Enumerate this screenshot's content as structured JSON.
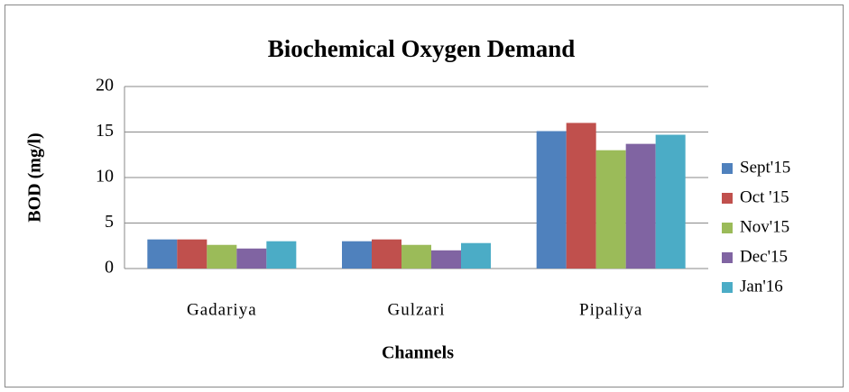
{
  "chart_data": {
    "type": "bar",
    "title": "Biochemical Oxygen Demand",
    "x_label": "Channels",
    "y_label": "BOD (mg/l)",
    "categories": [
      "Gadariya",
      "Gulzari",
      "Pipaliya"
    ],
    "series": [
      {
        "name": "Sept'15",
        "color": "#4f81bd",
        "values": [
          3.2,
          3.0,
          15.1
        ]
      },
      {
        "name": "Oct '15",
        "color": "#c0504d",
        "values": [
          3.2,
          3.2,
          16.0
        ]
      },
      {
        "name": "Nov'15",
        "color": "#9bbb59",
        "values": [
          2.6,
          2.6,
          13.0
        ]
      },
      {
        "name": "Dec'15",
        "color": "#8064a2",
        "values": [
          2.2,
          2.0,
          13.7
        ]
      },
      {
        "name": "Jan'16",
        "color": "#4bacc6",
        "values": [
          3.0,
          2.8,
          14.7
        ]
      }
    ],
    "ylim": [
      0,
      20
    ],
    "yticks": [
      0,
      5,
      10,
      15,
      20
    ],
    "grid": true,
    "legend": "right"
  }
}
